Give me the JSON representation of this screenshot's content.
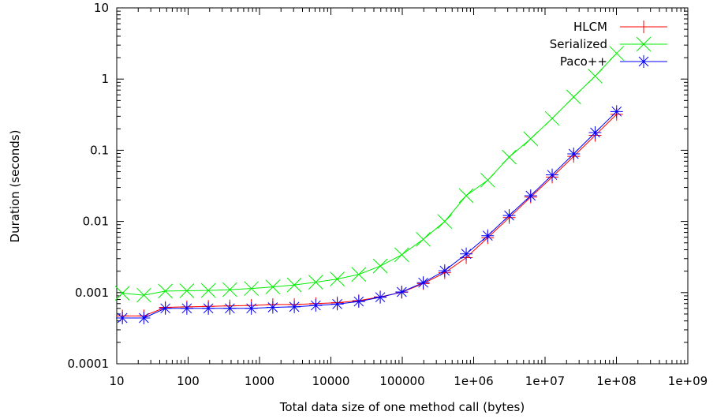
{
  "chart_data": {
    "type": "line",
    "title": "",
    "xlabel": "Total data size of one method call (bytes)",
    "ylabel": "Duration (seconds)",
    "xscale": "log",
    "yscale": "log",
    "xlim": [
      10,
      1000000000
    ],
    "ylim": [
      0.0001,
      10
    ],
    "x_ticks": [
      10,
      100,
      1000,
      10000,
      100000,
      1000000,
      10000000,
      100000000,
      1000000000
    ],
    "x_tick_labels": [
      "10",
      "100",
      "1000",
      "10000",
      "100000",
      "1e+06",
      "1e+07",
      "1e+08",
      "1e+09"
    ],
    "y_ticks": [
      0.0001,
      0.001,
      0.01,
      0.1,
      1,
      10
    ],
    "y_tick_labels": [
      "0.0001",
      "0.001",
      "0.01",
      "0.1",
      "1",
      "10"
    ],
    "grid": false,
    "legend_position": "top-right",
    "x": [
      12,
      24,
      48,
      96,
      192,
      384,
      768,
      1536,
      3072,
      6144,
      12288,
      24576,
      49152,
      98304,
      196608,
      393216,
      786432,
      1572864,
      3145728,
      6291456,
      12582912,
      25165824,
      50331648,
      100663296
    ],
    "series": [
      {
        "name": "HLCM",
        "color": "#ff0000",
        "marker": "plus",
        "values": [
          0.00047,
          0.00047,
          0.00062,
          0.00063,
          0.00064,
          0.00065,
          0.00066,
          0.00068,
          0.00068,
          0.0007,
          0.00072,
          0.00077,
          0.00087,
          0.00101,
          0.00134,
          0.0019,
          0.0031,
          0.0059,
          0.0113,
          0.022,
          0.042,
          0.082,
          0.162,
          0.32
        ]
      },
      {
        "name": "Serialized",
        "color": "#00ee00",
        "marker": "cross",
        "values": [
          0.00098,
          0.00092,
          0.00105,
          0.00106,
          0.00107,
          0.0011,
          0.00114,
          0.0012,
          0.00128,
          0.0014,
          0.00155,
          0.0018,
          0.00236,
          0.0034,
          0.0056,
          0.01,
          0.023,
          0.038,
          0.08,
          0.145,
          0.28,
          0.56,
          1.1,
          2.3
        ]
      },
      {
        "name": "Paco++",
        "color": "#0000ff",
        "marker": "star",
        "values": [
          0.00044,
          0.00044,
          0.0006,
          0.0006,
          0.0006,
          0.0006,
          0.0006,
          0.00062,
          0.00063,
          0.00066,
          0.00069,
          0.00075,
          0.00086,
          0.00102,
          0.00138,
          0.00203,
          0.0035,
          0.0063,
          0.0121,
          0.023,
          0.045,
          0.089,
          0.177,
          0.35
        ]
      }
    ]
  }
}
